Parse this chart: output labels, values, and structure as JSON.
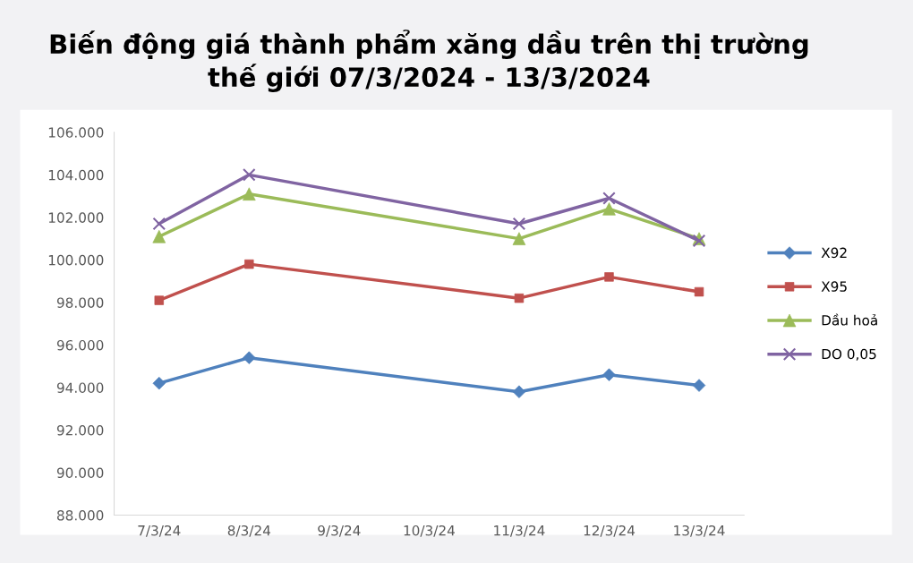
{
  "chart_data": {
    "type": "line",
    "title": "Biến động giá thành phẩm xăng dầu trên thị trường\nthế giới 07/3/2024 - 13/3/2024",
    "categories": [
      "7/3/24",
      "8/3/24",
      "9/3/24",
      "10/3/24",
      "11/3/24",
      "12/3/24",
      "13/3/24"
    ],
    "series": [
      {
        "name": "X92",
        "color": "#4f81bd",
        "marker": "diamond",
        "values": [
          94200,
          95400,
          null,
          null,
          93800,
          94600,
          94100
        ]
      },
      {
        "name": "X95",
        "color": "#c0504d",
        "marker": "square",
        "values": [
          98100,
          99800,
          null,
          null,
          98200,
          99200,
          98500
        ]
      },
      {
        "name": "Dầu hoả",
        "color": "#9bbb59",
        "marker": "triangle",
        "values": [
          101100,
          103100,
          null,
          null,
          101000,
          102400,
          101000
        ]
      },
      {
        "name": "DO 0,05",
        "color": "#8064a2",
        "marker": "cross",
        "values": [
          101700,
          104000,
          null,
          null,
          101700,
          102900,
          100900
        ]
      }
    ],
    "ylim": [
      88000,
      106000
    ],
    "yticks": [
      {
        "value": 88000,
        "label": "88.000"
      },
      {
        "value": 90000,
        "label": "90.000"
      },
      {
        "value": 92000,
        "label": "92.000"
      },
      {
        "value": 94000,
        "label": "94.000"
      },
      {
        "value": 96000,
        "label": "96.000"
      },
      {
        "value": 98000,
        "label": "98.000"
      },
      {
        "value": 100000,
        "label": "100.000"
      },
      {
        "value": 102000,
        "label": "102.000"
      },
      {
        "value": 104000,
        "label": "104.000"
      },
      {
        "value": 106000,
        "label": "106.000"
      }
    ],
    "grid": false,
    "legend": "right",
    "line_style": "solid"
  }
}
